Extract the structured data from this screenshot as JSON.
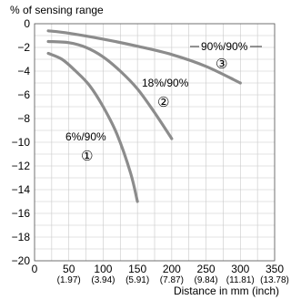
{
  "chart_data": {
    "type": "line",
    "ylabel": "% of sensing range",
    "xlabel": "Distance in mm (inch)",
    "xlim": [
      0,
      350
    ],
    "ylim": [
      -20,
      0
    ],
    "x_ticks": [
      {
        "value": 0,
        "label": "0",
        "sub": ""
      },
      {
        "value": 50,
        "label": "50",
        "sub": "(1.97)"
      },
      {
        "value": 100,
        "label": "100",
        "sub": "(3.94)"
      },
      {
        "value": 150,
        "label": "150",
        "sub": "(5.91)"
      },
      {
        "value": 200,
        "label": "200",
        "sub": "(7.87)"
      },
      {
        "value": 250,
        "label": "250",
        "sub": "(9.84)"
      },
      {
        "value": 300,
        "label": "300",
        "sub": "(11.81)"
      },
      {
        "value": 350,
        "label": "350",
        "sub": "(13.78)"
      }
    ],
    "y_ticks": [
      {
        "value": 0,
        "label": "0"
      },
      {
        "value": -2,
        "label": "−2"
      },
      {
        "value": -4,
        "label": "−4"
      },
      {
        "value": -6,
        "label": "−6"
      },
      {
        "value": -8,
        "label": "−8"
      },
      {
        "value": -10,
        "label": "−10"
      },
      {
        "value": -12,
        "label": "−12"
      },
      {
        "value": -14,
        "label": "−14"
      },
      {
        "value": -16,
        "label": "−16"
      },
      {
        "value": -18,
        "label": "−18"
      },
      {
        "value": -20,
        "label": "−20"
      }
    ],
    "grid": true,
    "line_color": "#8c8c8c",
    "series": [
      {
        "name": "6%/90%",
        "marker": "①",
        "points": [
          [
            20,
            -2.5
          ],
          [
            40,
            -3.0
          ],
          [
            60,
            -4.0
          ],
          [
            80,
            -5.2
          ],
          [
            100,
            -7.0
          ],
          [
            120,
            -9.3
          ],
          [
            140,
            -12.6
          ],
          [
            150,
            -15.0
          ]
        ]
      },
      {
        "name": "18%/90%",
        "marker": "②",
        "points": [
          [
            20,
            -1.5
          ],
          [
            50,
            -1.6
          ],
          [
            75,
            -2.0
          ],
          [
            100,
            -2.8
          ],
          [
            125,
            -4.0
          ],
          [
            150,
            -5.5
          ],
          [
            175,
            -7.5
          ],
          [
            200,
            -9.7
          ]
        ]
      },
      {
        "name": "90%/90%",
        "marker": "③",
        "points": [
          [
            20,
            -0.6
          ],
          [
            50,
            -0.8
          ],
          [
            100,
            -1.3
          ],
          [
            150,
            -1.9
          ],
          [
            200,
            -2.6
          ],
          [
            250,
            -3.6
          ],
          [
            300,
            -5.0
          ]
        ]
      }
    ]
  }
}
